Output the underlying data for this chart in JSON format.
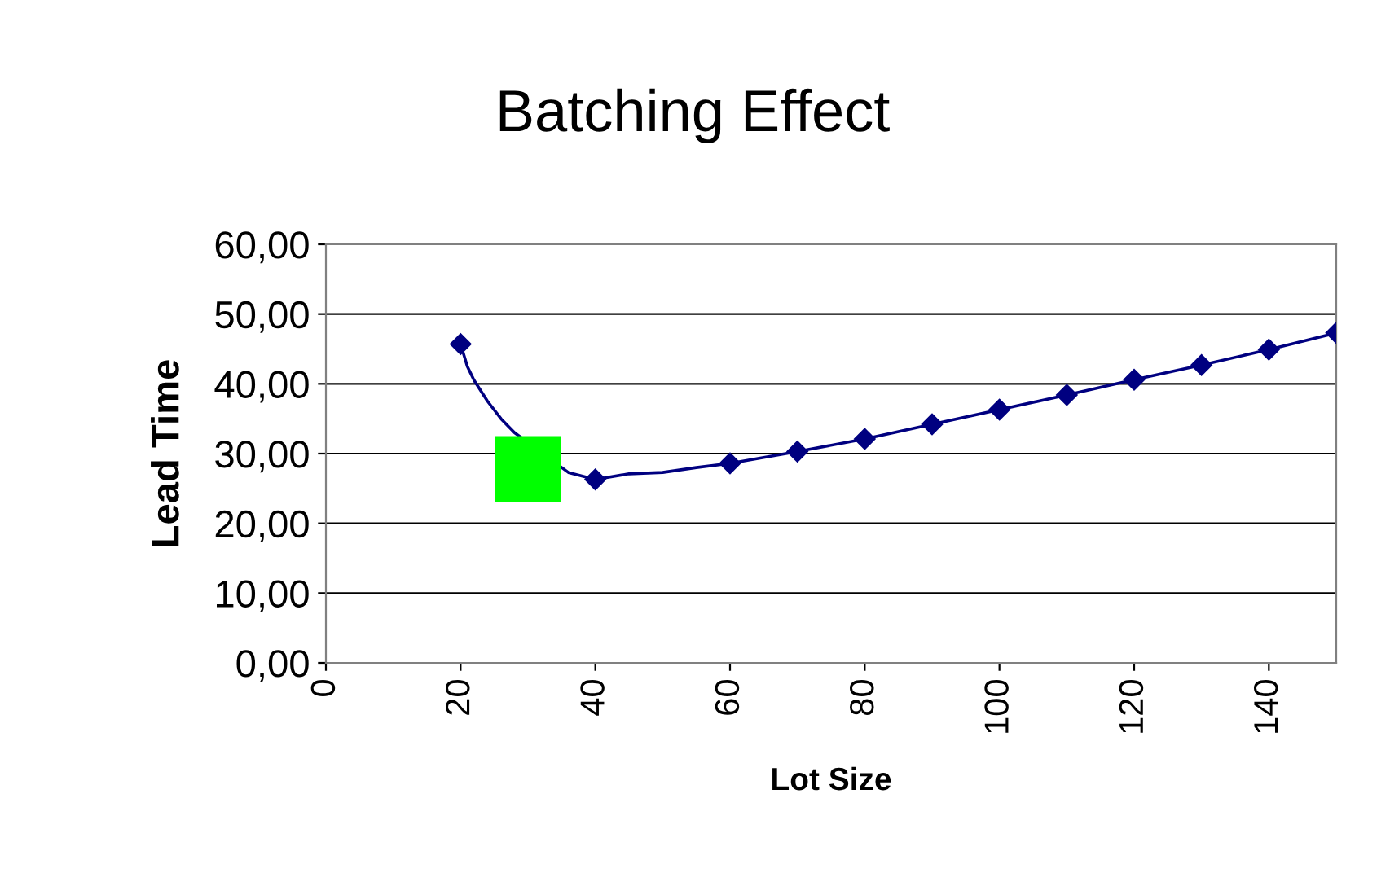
{
  "chart_data": {
    "type": "line",
    "title": "Batching Effect",
    "xlabel": "Lot Size",
    "ylabel": "Lead Time",
    "xlim": [
      0,
      150
    ],
    "xticks": [
      0,
      20,
      40,
      60,
      80,
      100,
      120,
      140
    ],
    "ylim": [
      0,
      60
    ],
    "yticks": [
      {
        "value": 0,
        "label": "0,00"
      },
      {
        "value": 10,
        "label": "10,00"
      },
      {
        "value": 20,
        "label": "20,00"
      },
      {
        "value": 30,
        "label": "30,00"
      },
      {
        "value": 40,
        "label": "40,00"
      },
      {
        "value": 50,
        "label": "50,00"
      },
      {
        "value": 60,
        "label": "60,00"
      }
    ],
    "grid": "y",
    "legend": false,
    "series": [
      {
        "color": "#000080",
        "marker": "none",
        "x": [
          20,
          21,
          22,
          24,
          26,
          28,
          36,
          40,
          45,
          50,
          55,
          60,
          70,
          80,
          90,
          100,
          110,
          120,
          130,
          140,
          150
        ],
        "values": [
          45.7,
          42.5,
          40.5,
          37.5,
          35.0,
          33.0,
          27.3,
          26.3,
          27.1,
          27.3,
          28.0,
          28.6,
          30.3,
          32.1,
          34.2,
          36.3,
          38.4,
          40.6,
          42.7,
          44.9,
          47.3
        ]
      },
      {
        "type": "scatter",
        "color": "#000080",
        "marker": "diamond",
        "x": [
          20,
          40,
          60,
          70,
          80,
          90,
          100,
          110,
          120,
          130,
          140,
          150
        ],
        "values": [
          45.7,
          26.3,
          28.6,
          30.3,
          32.1,
          34.2,
          36.3,
          38.4,
          40.6,
          42.7,
          44.9,
          47.3
        ]
      },
      {
        "type": "scatter",
        "color": "#00ff00",
        "marker": "square",
        "x": [
          30
        ],
        "values": [
          27.8
        ]
      }
    ]
  }
}
